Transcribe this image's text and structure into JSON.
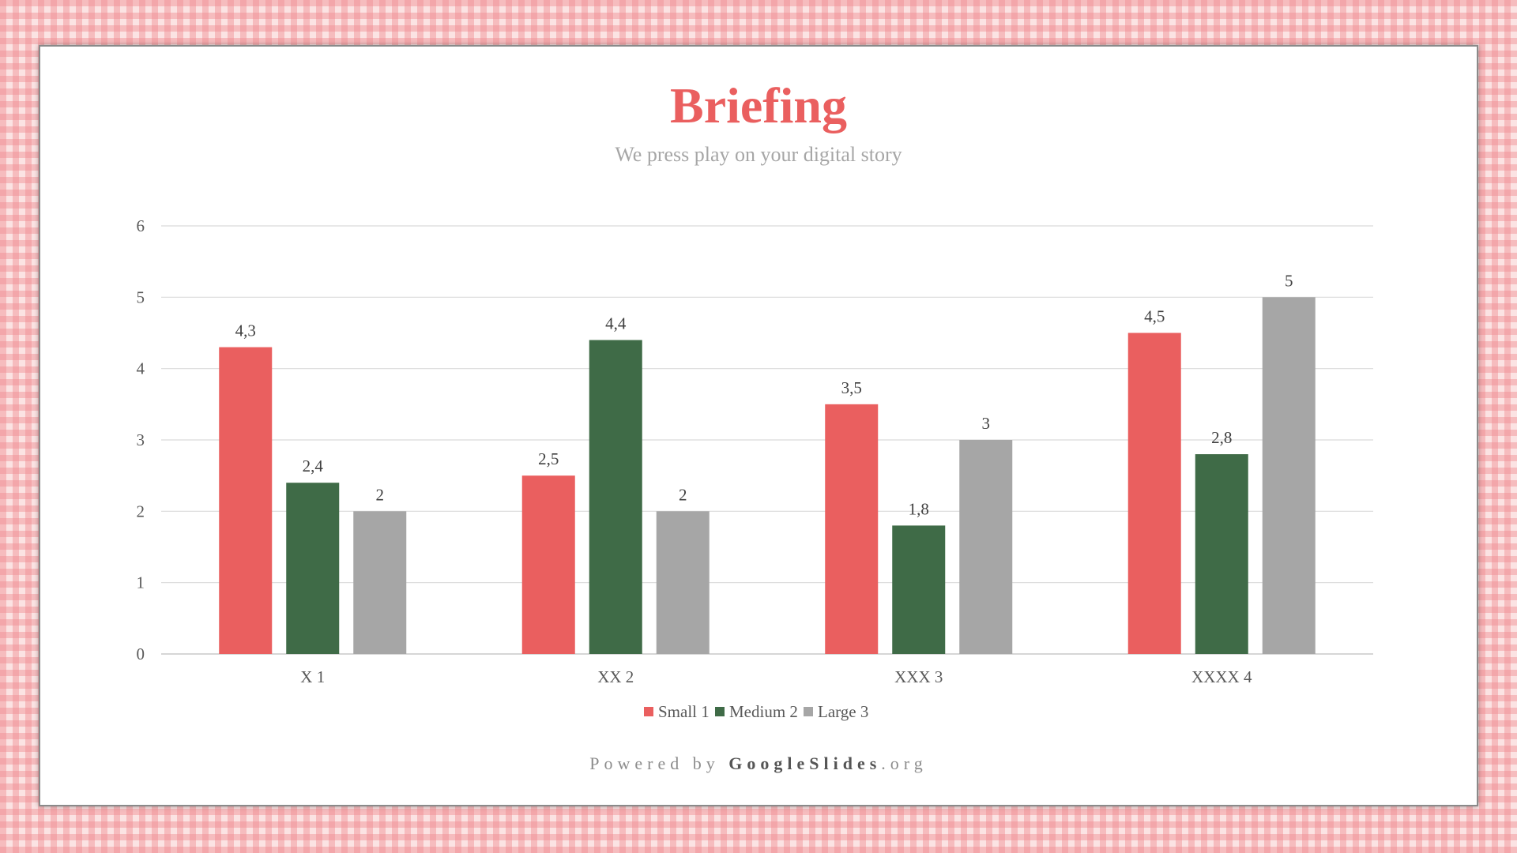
{
  "slide": {
    "title": "Briefing",
    "subtitle": "We press play on your digital story",
    "footer_prefix": "Powered by ",
    "footer_brand": "GoogleSlides",
    "footer_suffix": ".org"
  },
  "chart_data": {
    "type": "bar",
    "categories": [
      "X 1",
      "XX 2",
      "XXX 3",
      "XXXX 4"
    ],
    "series": [
      {
        "name": "Small 1",
        "values": [
          4.3,
          2.5,
          3.5,
          4.5
        ],
        "labels": [
          "4,3",
          "2,5",
          "3,5",
          "4,5"
        ],
        "color": "#ea5f5f"
      },
      {
        "name": "Medium 2",
        "values": [
          2.4,
          4.4,
          1.8,
          2.8
        ],
        "labels": [
          "2,4",
          "4,4",
          "1,8",
          "2,8"
        ],
        "color": "#3f6b47"
      },
      {
        "name": "Large 3",
        "values": [
          2,
          2,
          3,
          5
        ],
        "labels": [
          "2",
          "2",
          "3",
          "5"
        ],
        "color": "#a6a6a6"
      }
    ],
    "yticks": [
      "0",
      "1",
      "2",
      "3",
      "4",
      "5",
      "6"
    ],
    "ylim": [
      0,
      6
    ],
    "grid": true,
    "legend_position": "bottom"
  }
}
